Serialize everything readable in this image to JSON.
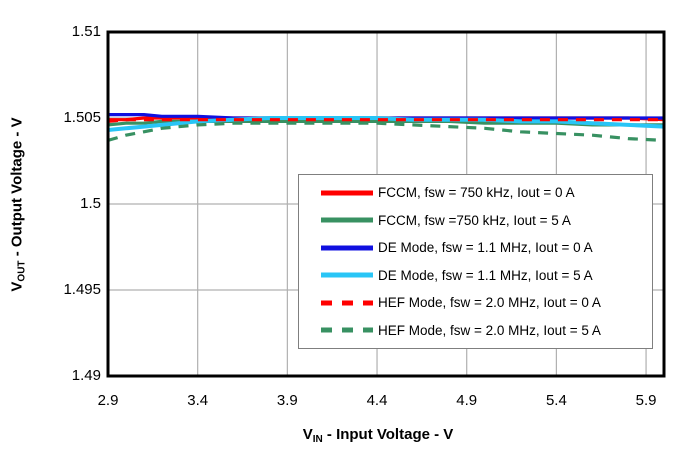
{
  "page": {
    "background": "#FFFFFF"
  },
  "chart_data": {
    "type": "line",
    "title": "",
    "xlabel": {
      "prefix": "V",
      "sub": "IN",
      "rest": " - Input Voltage - V"
    },
    "ylabel": {
      "prefix": "V",
      "sub": "OUT",
      "rest": " - Output Voltage - V"
    },
    "xlim": [
      2.9,
      6.0
    ],
    "ylim": [
      1.49,
      1.51
    ],
    "x_ticks": [
      2.9,
      3.4,
      3.9,
      4.4,
      4.9,
      5.4,
      5.9
    ],
    "x_tick_labels": [
      "2.9",
      "3.4",
      "3.9",
      "4.4",
      "4.9",
      "5.4",
      "5.9"
    ],
    "y_ticks": [
      1.49,
      1.495,
      1.5,
      1.505,
      1.51
    ],
    "y_tick_labels": [
      "1.49",
      "1.495",
      "1.5",
      "1.505",
      "1.51"
    ],
    "grid": true,
    "grid_color": "#B0B0B0",
    "frame_color": "#000000",
    "legend_position": "inside-lower-right",
    "legend_border_color": "#7F7F7F",
    "x": [
      2.9,
      3.0,
      3.1,
      3.2,
      3.4,
      3.6,
      3.8,
      4.0,
      4.2,
      4.4,
      4.6,
      4.8,
      5.0,
      5.2,
      5.4,
      5.6,
      5.8,
      6.0
    ],
    "series": [
      {
        "name": "FCCM, fsw = 750 kHz, Iout = 0 A",
        "color": "#FF0000",
        "style": "solid",
        "values": [
          1.5049,
          1.5049,
          1.505,
          1.505,
          1.505,
          1.505,
          1.505,
          1.505,
          1.505,
          1.505,
          1.505,
          1.505,
          1.505,
          1.505,
          1.505,
          1.505,
          1.505,
          1.5049
        ]
      },
      {
        "name": "FCCM, fsw =750 kHz, Iout = 5 A",
        "color": "#389162",
        "style": "solid",
        "values": [
          1.5046,
          1.5047,
          1.5047,
          1.5048,
          1.5048,
          1.5048,
          1.5048,
          1.5048,
          1.5048,
          1.5048,
          1.5048,
          1.5048,
          1.5047,
          1.5047,
          1.5047,
          1.5046,
          1.5046,
          1.5046
        ]
      },
      {
        "name": "DE Mode, fsw = 1.1 MHz, Iout = 0 A",
        "color": "#1010E0",
        "style": "solid",
        "values": [
          1.5052,
          1.5052,
          1.5052,
          1.5051,
          1.5051,
          1.505,
          1.505,
          1.505,
          1.505,
          1.505,
          1.505,
          1.505,
          1.505,
          1.505,
          1.505,
          1.505,
          1.505,
          1.505
        ]
      },
      {
        "name": "DE Mode, fsw = 1.1 MHz, Iout = 5 A",
        "color": "#29C5F6",
        "style": "solid",
        "values": [
          1.5043,
          1.5044,
          1.5045,
          1.5046,
          1.5048,
          1.5049,
          1.505,
          1.505,
          1.505,
          1.505,
          1.5049,
          1.5049,
          1.5049,
          1.5048,
          1.5048,
          1.5047,
          1.5046,
          1.5045
        ]
      },
      {
        "name": "HEF Mode, fsw = 2.0 MHz, Iout = 0 A",
        "color": "#FF0000",
        "style": "dashed",
        "values": [
          1.5048,
          1.5049,
          1.5049,
          1.5049,
          1.5049,
          1.5049,
          1.5049,
          1.5049,
          1.5049,
          1.5049,
          1.5049,
          1.5049,
          1.5049,
          1.5049,
          1.5049,
          1.5049,
          1.5049,
          1.5049
        ]
      },
      {
        "name": "HEF Mode, fsw = 2.0 MHz, Iout = 5 A",
        "color": "#389162",
        "style": "dashed",
        "values": [
          1.5037,
          1.504,
          1.5042,
          1.5044,
          1.5046,
          1.5047,
          1.5047,
          1.5047,
          1.5047,
          1.5047,
          1.5046,
          1.5045,
          1.5044,
          1.5042,
          1.5041,
          1.504,
          1.5038,
          1.5037
        ]
      }
    ]
  }
}
